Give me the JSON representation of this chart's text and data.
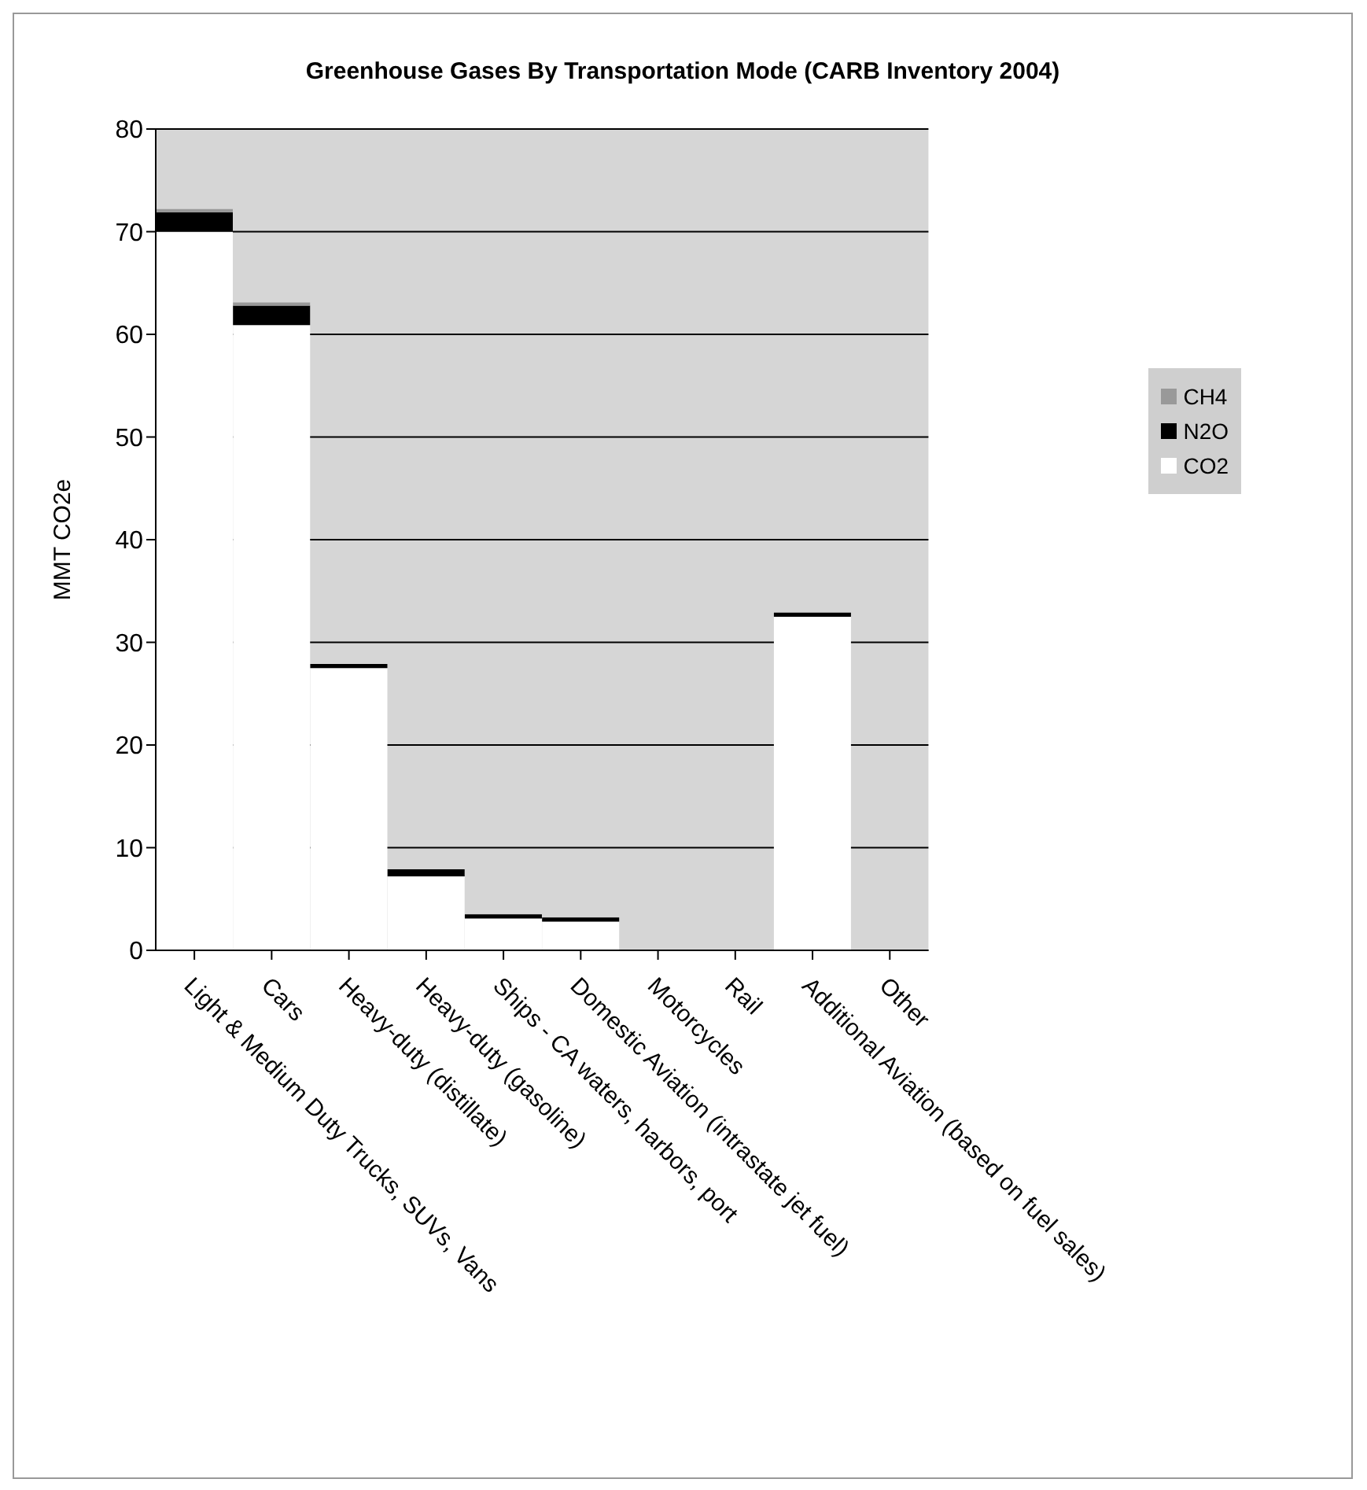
{
  "chart_data": {
    "type": "bar",
    "title": "Greenhouse Gases By Transportation Mode (CARB Inventory 2004)",
    "ylabel": "MMT CO2e",
    "categories": [
      "Light & Medium Duty Trucks, SUVs, Vans",
      "Cars",
      "Heavy-duty (distillate)",
      "Heavy-duty (gasoline)",
      "Ships - CA waters, harbors, port",
      "Domestic Aviation (intrastate jet fuel)",
      "Motorcycles",
      "Rail",
      "Additional Aviation (based on fuel sales)",
      "Other"
    ],
    "stacked": true,
    "series": [
      {
        "name": "CO2",
        "color": "#ffffff",
        "values": [
          70.0,
          60.9,
          27.5,
          7.2,
          3.1,
          2.8,
          null,
          null,
          32.5,
          null
        ]
      },
      {
        "name": "N2O",
        "color": "#000000",
        "values": [
          1.9,
          1.9,
          0.4,
          0.7,
          0.4,
          0.4,
          null,
          null,
          0.4,
          null
        ]
      },
      {
        "name": "CH4",
        "color": "#999999",
        "values": [
          0.3,
          0.3,
          null,
          null,
          null,
          null,
          null,
          null,
          null,
          null
        ]
      }
    ],
    "ylim": [
      0,
      80
    ],
    "yticks": [
      0,
      10,
      20,
      30,
      40,
      50,
      60,
      70,
      80
    ],
    "grid": "y",
    "legend": "right"
  }
}
